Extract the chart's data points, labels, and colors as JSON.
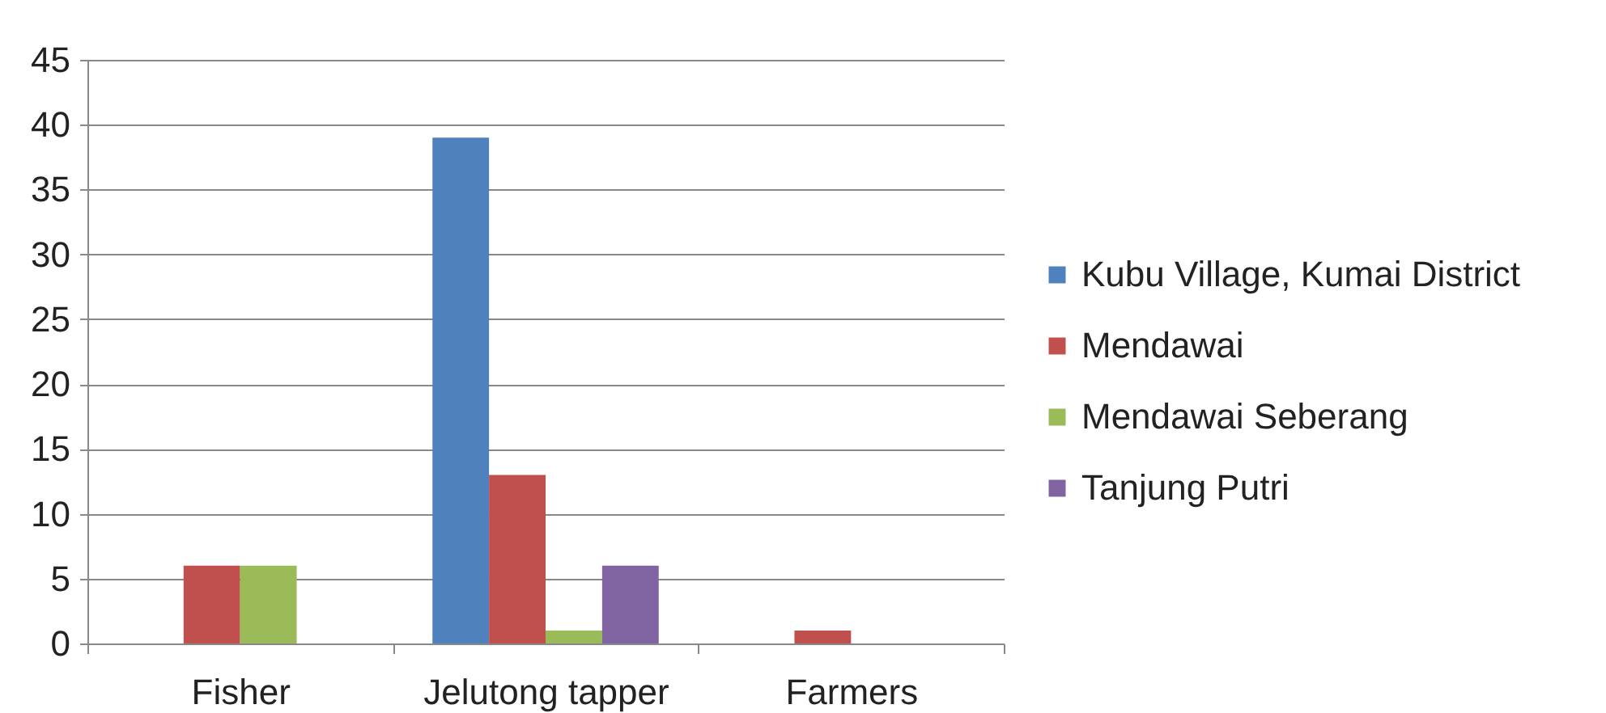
{
  "chart_data": {
    "type": "bar",
    "categories": [
      "Fisher",
      "Jelutong tapper",
      "Farmers"
    ],
    "series": [
      {
        "name": "Kubu Village, Kumai District",
        "color": "#4f81bd",
        "values": [
          0,
          39,
          0
        ]
      },
      {
        "name": "Mendawai",
        "color": "#c0504d",
        "values": [
          6,
          13,
          1
        ]
      },
      {
        "name": "Mendawai Seberang",
        "color": "#9bbb59",
        "values": [
          6,
          1,
          0
        ]
      },
      {
        "name": "Tanjung Putri",
        "color": "#8064a2",
        "values": [
          0,
          6,
          0
        ]
      }
    ],
    "ylim": [
      0,
      45
    ],
    "yticks": [
      0,
      5,
      10,
      15,
      20,
      25,
      30,
      35,
      40,
      45
    ],
    "grid": "y",
    "legend": "right"
  }
}
